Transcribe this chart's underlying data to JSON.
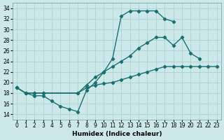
{
  "xlabel": "Humidex (Indice chaleur)",
  "background_color": "#cce8e8",
  "grid_color": "#a8cccc",
  "line_color": "#1a7070",
  "marker": "D",
  "markersize": 2.2,
  "linewidth": 1.0,
  "xlim": [
    -0.5,
    23.5
  ],
  "ylim": [
    13,
    35
  ],
  "xticks": [
    0,
    1,
    2,
    3,
    4,
    5,
    6,
    7,
    8,
    9,
    10,
    11,
    12,
    13,
    14,
    15,
    16,
    17,
    18,
    19,
    20,
    21,
    22,
    23
  ],
  "yticks": [
    14,
    16,
    18,
    20,
    22,
    24,
    26,
    28,
    30,
    32,
    34
  ],
  "line_top_x": [
    0,
    1,
    2,
    3,
    4,
    5,
    6,
    7,
    8,
    9,
    10,
    11,
    12,
    13,
    14,
    15,
    16,
    17,
    18
  ],
  "line_top_y": [
    19,
    18,
    17.5,
    17.5,
    16.5,
    15.5,
    15,
    14.5,
    18.5,
    20,
    22,
    24.5,
    32.5,
    33.5,
    33.5,
    33.5,
    33.5,
    32.0,
    31.5
  ],
  "line_mid_x": [
    0,
    1,
    2,
    3,
    7,
    8,
    9,
    10,
    11,
    12,
    13,
    14,
    15,
    16,
    17,
    18,
    19,
    20,
    21
  ],
  "line_mid_y": [
    19,
    18,
    18,
    18,
    18,
    19.5,
    21,
    22,
    23,
    24,
    25,
    26.5,
    27.5,
    28.5,
    28.5,
    27.0,
    28.5,
    25.5,
    24.5
  ],
  "line_bot_x": [
    0,
    1,
    2,
    3,
    7,
    8,
    9,
    10,
    11,
    12,
    13,
    14,
    15,
    16,
    17,
    18,
    19,
    20,
    21,
    22,
    23
  ],
  "line_bot_y": [
    19,
    18,
    18,
    18,
    18,
    19.0,
    19.5,
    19.8,
    20.0,
    20.5,
    21.0,
    21.5,
    22.0,
    22.5,
    23.0,
    23.0,
    23.0,
    23.0,
    23.0,
    23.0,
    23.0
  ]
}
